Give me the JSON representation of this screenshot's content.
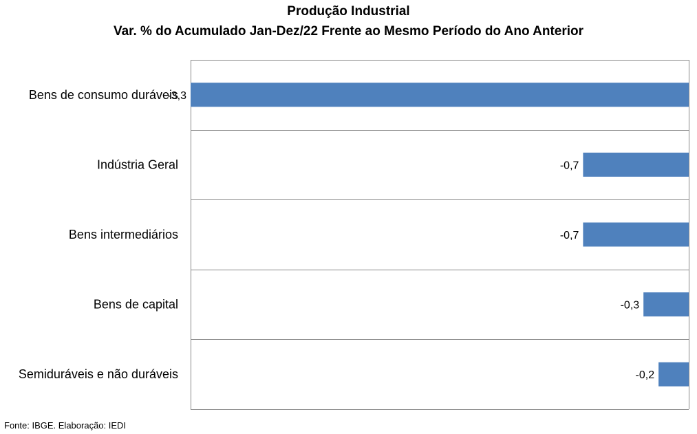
{
  "chart_data": {
    "type": "bar",
    "orientation": "horizontal",
    "title": "Produção Industrial",
    "subtitle": "Var. % do Acumulado Jan-Dez/22 Frente ao Mesmo Período do Ano Anterior",
    "categories": [
      "Bens de consumo duráveis",
      "Indústria Geral",
      "Bens intermediários",
      "Bens de capital",
      "Semiduráveis e não duráveis"
    ],
    "values": [
      -3.3,
      -0.7,
      -0.7,
      -0.3,
      -0.2
    ],
    "value_labels": [
      "-3,3",
      "-0,7",
      "-0,7",
      "-0,3",
      "-0,2"
    ],
    "xlim": [
      -3.3,
      0
    ],
    "grid": true,
    "bar_color": "#4f81bd"
  },
  "footer": {
    "source": "Fonte: IBGE. Elaboração: IEDI"
  }
}
